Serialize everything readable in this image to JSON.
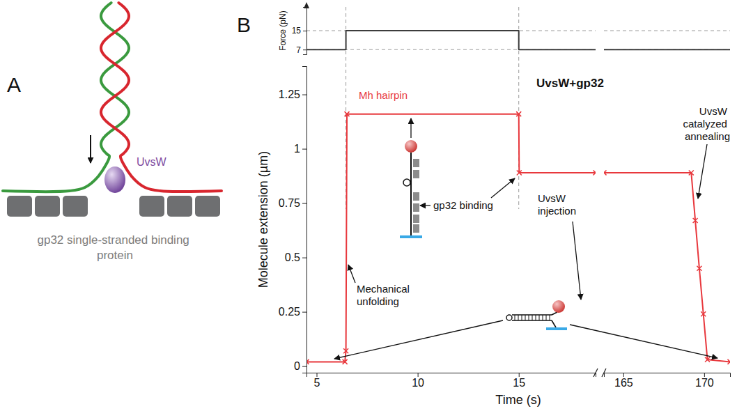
{
  "diagram": {
    "label": "A",
    "protein": "UvsW",
    "binding_protein": "gp32 single-stranded binding protein"
  },
  "chart_data": [
    {
      "type": "line",
      "y_label": "Force (pN)",
      "xlim": [
        [
          4.5,
          18.8
        ],
        [
          163.8,
          171.6
        ]
      ],
      "ylim": [
        5,
        25
      ],
      "yticks": [
        7,
        15
      ],
      "grid": true,
      "tick_labels": "y",
      "color": "#3c3c3c",
      "x": [
        4.5,
        6.45,
        6.45,
        15,
        15,
        18.8,
        null,
        163.8,
        171.6
      ],
      "values": [
        7,
        7,
        15,
        15,
        7,
        7,
        null,
        7,
        7
      ]
    },
    {
      "type": "line",
      "panel_label": "B",
      "title": "UvsW+gp32",
      "x_label": "Time (s)",
      "y_label": "Molecule extension (µm)",
      "xlim": [
        [
          4.5,
          18.8
        ],
        [
          163.8,
          171.6
        ]
      ],
      "xticks": [
        [
          5,
          10,
          15
        ],
        [
          165,
          170
        ]
      ],
      "ylim": [
        -0.03,
        1.38
      ],
      "yticks": [
        0,
        0.25,
        0.5,
        0.75,
        1,
        1.25
      ],
      "color": "#e8383d",
      "marker": "x",
      "x": [
        4.5,
        6.4,
        6.45,
        6.5,
        15,
        15.02,
        18.8,
        null,
        163.8,
        169.2,
        169.45,
        169.7,
        169.95,
        170.2,
        171.6
      ],
      "values": [
        0.02,
        0.02,
        0.07,
        1.16,
        1.16,
        0.89,
        0.89,
        null,
        0.89,
        0.89,
        0.67,
        0.45,
        0.24,
        0.03,
        0.02
      ],
      "annotations": [
        "Mh hairpin",
        "gp32 binding",
        "Mechanical unfolding",
        "UvsW injection",
        "UvsW catalyzed annealing"
      ]
    }
  ]
}
